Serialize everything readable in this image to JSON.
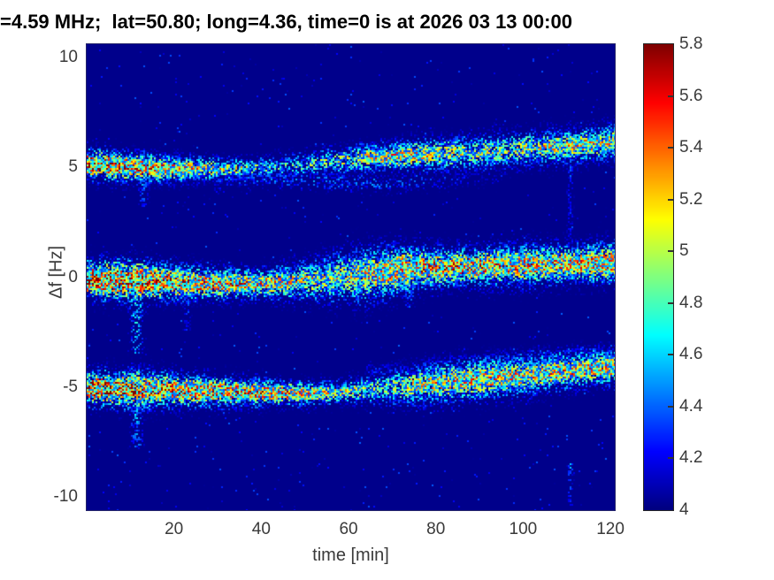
{
  "figure": {
    "title": "=4.59 MHz;  lat=50.80; long=4.36, time=0 is at 2026 03 13 00:00"
  },
  "chart_data": {
    "type": "heatmap",
    "subtype": "doppler-spectrogram",
    "title": "=4.59 MHz;  lat=50.80; long=4.36, time=0 is at 2026 03 13 00:00",
    "xlabel": "time [min]",
    "ylabel": "Δf [Hz]",
    "xlim": [
      0,
      121
    ],
    "ylim": [
      -10.6,
      10.6
    ],
    "xticks": [
      20,
      40,
      60,
      80,
      100,
      120
    ],
    "xtick_labels": [
      "20",
      "40",
      "60",
      "80",
      "100",
      "120"
    ],
    "yticks": [
      10,
      5,
      0,
      -5,
      -10
    ],
    "ytick_labels": [
      "10",
      "5",
      "0",
      "-5",
      "-10"
    ],
    "grid": false,
    "colormap": "jet",
    "colorbar": {
      "min": 4,
      "max": 5.8,
      "ticks": [
        4,
        4.2,
        4.4,
        4.6,
        4.8,
        5,
        5.2,
        5.4,
        5.6,
        5.8
      ],
      "tick_labels": [
        "4",
        "4.2",
        "4.4",
        "4.6",
        "4.8",
        "5",
        "5.2",
        "5.4",
        "5.6",
        "5.8"
      ],
      "position": "right"
    },
    "background_value": 4.02,
    "noise": {
      "p": 0.012,
      "amp": 0.4
    },
    "seed": 1234,
    "bands": [
      {
        "name": "upper-band-plus5Hz",
        "keys": [
          [
            0,
            5.15,
            0.45,
            5.7
          ],
          [
            8,
            5.05,
            0.45,
            5.7
          ],
          [
            16,
            4.95,
            0.4,
            5.5
          ],
          [
            25,
            4.92,
            0.35,
            5.3
          ],
          [
            35,
            4.95,
            0.3,
            5.1
          ],
          [
            45,
            5.05,
            0.35,
            4.85
          ],
          [
            55,
            5.25,
            0.4,
            4.95
          ],
          [
            65,
            5.45,
            0.4,
            5.3
          ],
          [
            75,
            5.55,
            0.45,
            5.3
          ],
          [
            85,
            5.65,
            0.5,
            5.15
          ],
          [
            95,
            5.75,
            0.5,
            5.1
          ],
          [
            105,
            5.9,
            0.5,
            5.2
          ],
          [
            113,
            6.0,
            0.5,
            5.3
          ],
          [
            120,
            6.15,
            0.5,
            5.25
          ]
        ]
      },
      {
        "name": "upper-band-faint-lower-branch",
        "keys": [
          [
            20,
            4.6,
            0.3,
            4.3
          ],
          [
            35,
            4.5,
            0.3,
            4.4
          ],
          [
            50,
            4.4,
            0.3,
            4.45
          ],
          [
            65,
            4.3,
            0.3,
            4.5
          ],
          [
            78,
            4.35,
            0.3,
            4.35
          ],
          [
            90,
            4.6,
            0.35,
            4.2
          ]
        ]
      },
      {
        "name": "middle-band-0Hz",
        "keys": [
          [
            0,
            -0.1,
            0.55,
            5.8
          ],
          [
            10,
            -0.15,
            0.6,
            5.8
          ],
          [
            20,
            -0.25,
            0.5,
            5.65
          ],
          [
            30,
            -0.3,
            0.45,
            5.5
          ],
          [
            40,
            -0.3,
            0.45,
            5.35
          ],
          [
            48,
            -0.2,
            0.55,
            5.2
          ],
          [
            56,
            -0.05,
            0.7,
            5.15
          ],
          [
            64,
            0.1,
            0.8,
            5.25
          ],
          [
            72,
            0.35,
            0.7,
            5.5
          ],
          [
            80,
            0.45,
            0.55,
            5.55
          ],
          [
            90,
            0.5,
            0.55,
            5.5
          ],
          [
            100,
            0.55,
            0.6,
            5.45
          ],
          [
            110,
            0.6,
            0.55,
            5.45
          ],
          [
            120,
            0.65,
            0.6,
            5.5
          ]
        ]
      },
      {
        "name": "lower-band-minus5Hz",
        "keys": [
          [
            0,
            -5.05,
            0.5,
            5.8
          ],
          [
            10,
            -5.1,
            0.55,
            5.75
          ],
          [
            20,
            -5.15,
            0.5,
            5.6
          ],
          [
            30,
            -5.2,
            0.45,
            5.55
          ],
          [
            40,
            -5.25,
            0.4,
            5.5
          ],
          [
            50,
            -5.3,
            0.35,
            5.4
          ],
          [
            58,
            -5.25,
            0.35,
            5.15
          ],
          [
            66,
            -5.1,
            0.45,
            5.0
          ],
          [
            74,
            -4.95,
            0.55,
            5.15
          ],
          [
            82,
            -4.8,
            0.6,
            5.3
          ],
          [
            90,
            -4.65,
            0.6,
            5.35
          ],
          [
            100,
            -4.5,
            0.55,
            5.3
          ],
          [
            110,
            -4.3,
            0.5,
            5.4
          ],
          [
            120,
            -4.1,
            0.5,
            5.4
          ]
        ]
      },
      {
        "name": "lower-band-faint-upper-branch",
        "keys": [
          [
            70,
            -4.3,
            0.3,
            4.3
          ],
          [
            85,
            -4.0,
            0.3,
            4.5
          ],
          [
            100,
            -3.75,
            0.3,
            4.6
          ],
          [
            110,
            -3.6,
            0.3,
            4.6
          ],
          [
            120,
            -3.45,
            0.3,
            4.55
          ]
        ]
      }
    ],
    "spikes": [
      {
        "t": 11.5,
        "sigma": 1.1,
        "top": 0.6,
        "bottom": -3.5,
        "peak": 5.0
      },
      {
        "t": 11.5,
        "sigma": 1.0,
        "top": -4.3,
        "bottom": -7.8,
        "peak": 4.9
      },
      {
        "t": 13,
        "sigma": 0.8,
        "top": 4.6,
        "bottom": 3.2,
        "peak": 4.6
      },
      {
        "t": 23,
        "sigma": 0.6,
        "top": -0.3,
        "bottom": -2.4,
        "peak": 4.55
      },
      {
        "t": 30,
        "sigma": 0.5,
        "top": 4.7,
        "bottom": 3.8,
        "peak": 4.4
      },
      {
        "t": 74,
        "sigma": 0.8,
        "top": 0.3,
        "bottom": -1.4,
        "peak": 4.75
      },
      {
        "t": 110.8,
        "sigma": 0.5,
        "top": 6.5,
        "bottom": 1.8,
        "peak": 4.45
      },
      {
        "t": 110.8,
        "sigma": 0.5,
        "top": -8.5,
        "bottom": -10.4,
        "peak": 4.5
      }
    ]
  },
  "colors": {
    "title": "#000000",
    "axis_text": "#3a3a3a",
    "plot_border": "#262626",
    "figure_bg": "#ffffff"
  }
}
